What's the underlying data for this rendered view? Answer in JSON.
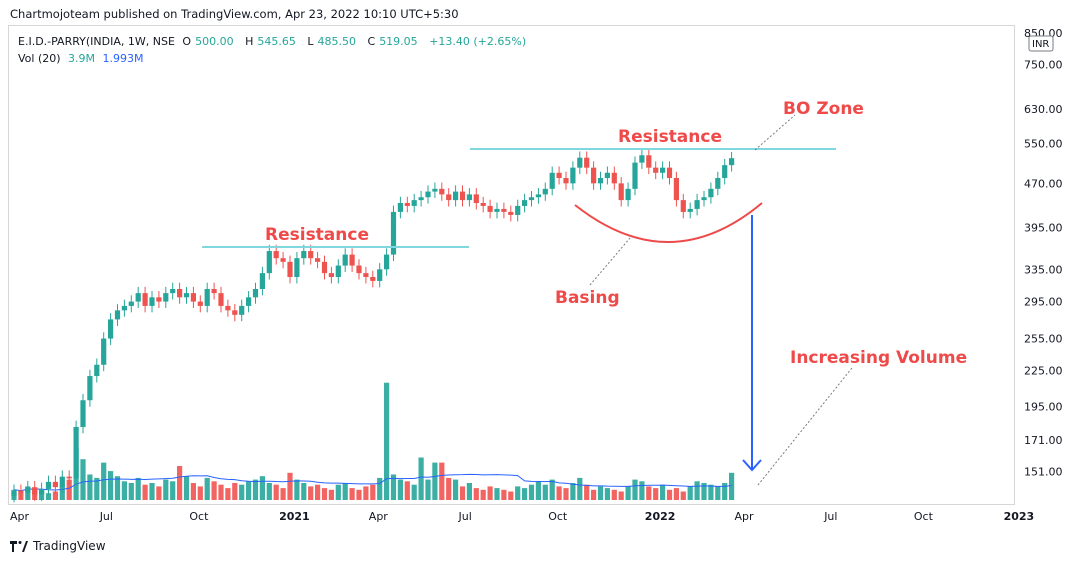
{
  "header": {
    "published": "Chartmojoteam published on TradingView.com, Apr 23, 2022 10:10 UTC+5:30"
  },
  "legend": {
    "symbol": "E.I.D.-PARRY(INDIA, 1W, NSE",
    "open_label": "O",
    "open": "500.00",
    "high_label": "H",
    "high": "545.65",
    "low_label": "L",
    "low": "485.50",
    "close_label": "C",
    "close": "519.05",
    "change": "+13.40 (+2.65%)",
    "volume_label": "Vol (20)",
    "volume": "3.9M",
    "volume_ma": "1.993M"
  },
  "footer": {
    "brand": "TradingView"
  },
  "chart_data": {
    "type": "candlestick",
    "currency": "INR",
    "y_scale": "log",
    "ylim": [
      135,
      860
    ],
    "y_ticks": [
      151,
      171,
      195,
      225,
      255,
      295,
      335,
      395,
      470,
      550,
      630,
      750,
      850
    ],
    "y_tick_labels": [
      "151.00",
      "171.00",
      "195.00",
      "225.00",
      "255.00",
      "295.00",
      "335.00",
      "395.00",
      "470.00",
      "550.00",
      "630.00",
      "750.00",
      "850.00"
    ],
    "x_tick_labels": [
      "Apr",
      "Jul",
      "Oct",
      "2021",
      "Apr",
      "Jul",
      "Oct",
      "2022",
      "Apr",
      "Jul",
      "Oct",
      "2023"
    ],
    "x_tick_weeks": [
      0,
      13,
      26,
      39,
      52,
      65,
      78,
      92,
      105,
      118,
      131,
      144
    ],
    "closes": [
      140,
      139,
      142,
      138,
      141,
      145,
      142,
      148,
      147,
      180,
      200,
      220,
      230,
      255,
      275,
      285,
      290,
      295,
      305,
      290,
      300,
      295,
      305,
      310,
      300,
      305,
      295,
      290,
      310,
      305,
      290,
      285,
      280,
      290,
      300,
      310,
      330,
      360,
      350,
      345,
      325,
      350,
      360,
      350,
      345,
      330,
      325,
      340,
      355,
      340,
      330,
      325,
      320,
      335,
      355,
      420,
      435,
      430,
      440,
      445,
      455,
      460,
      450,
      440,
      455,
      440,
      450,
      435,
      430,
      420,
      425,
      420,
      415,
      430,
      440,
      445,
      450,
      460,
      490,
      480,
      470,
      500,
      520,
      500,
      470,
      480,
      490,
      470,
      440,
      460,
      510,
      525,
      500,
      490,
      500,
      480,
      440,
      420,
      425,
      440,
      445,
      460,
      480,
      505,
      519
    ],
    "up_candles_color": "#26a69a",
    "down_candles_color": "#ef5350",
    "volume": [
      0.6,
      0.5,
      0.8,
      0.7,
      0.6,
      0.4,
      0.5,
      0.9,
      1.2,
      3.1,
      2.4,
      1.5,
      1.3,
      2.2,
      1.7,
      1.4,
      1.1,
      1.0,
      1.3,
      0.9,
      1.0,
      0.8,
      1.2,
      1.1,
      2.0,
      1.4,
      1.0,
      0.8,
      1.3,
      1.1,
      0.9,
      0.7,
      1.0,
      0.9,
      1.1,
      1.2,
      1.4,
      1.0,
      0.9,
      0.7,
      1.6,
      1.2,
      1.0,
      0.8,
      0.9,
      0.7,
      0.6,
      0.9,
      1.0,
      0.7,
      0.6,
      0.8,
      0.9,
      1.3,
      6.9,
      1.5,
      1.2,
      1.1,
      0.9,
      2.5,
      1.2,
      2.2,
      2.2,
      1.3,
      1.2,
      0.8,
      1.0,
      0.7,
      0.6,
      0.8,
      0.7,
      0.6,
      0.5,
      0.8,
      0.7,
      0.9,
      1.1,
      0.9,
      1.2,
      0.8,
      0.7,
      1.0,
      1.3,
      0.9,
      0.6,
      0.8,
      0.7,
      0.6,
      0.5,
      0.8,
      1.2,
      1.1,
      0.8,
      0.7,
      0.9,
      0.6,
      0.7,
      0.5,
      0.8,
      1.1,
      1.0,
      0.9,
      0.8,
      1.0,
      1.6
    ],
    "volume_ma_color": "#2962ff",
    "annotations": [
      {
        "text": "Resistance",
        "type": "horizontal-level",
        "price": 368,
        "from_week": 29,
        "to_week": 79,
        "color": "#80d8de"
      },
      {
        "text": "Resistance",
        "type": "horizontal-level",
        "price": 540,
        "from_week": 80,
        "to_week": 135,
        "color": "#80d8de"
      },
      {
        "text": "Basing",
        "type": "arc",
        "color": "#ef4a4a"
      },
      {
        "text": "BO Zone",
        "type": "label",
        "color": "#ef4a4a"
      },
      {
        "text": "Increasing Volume",
        "type": "label",
        "color": "#ef4a4a"
      }
    ],
    "arrow": {
      "type": "down-arrow",
      "color": "#2962ff",
      "from_week": 104
    }
  }
}
